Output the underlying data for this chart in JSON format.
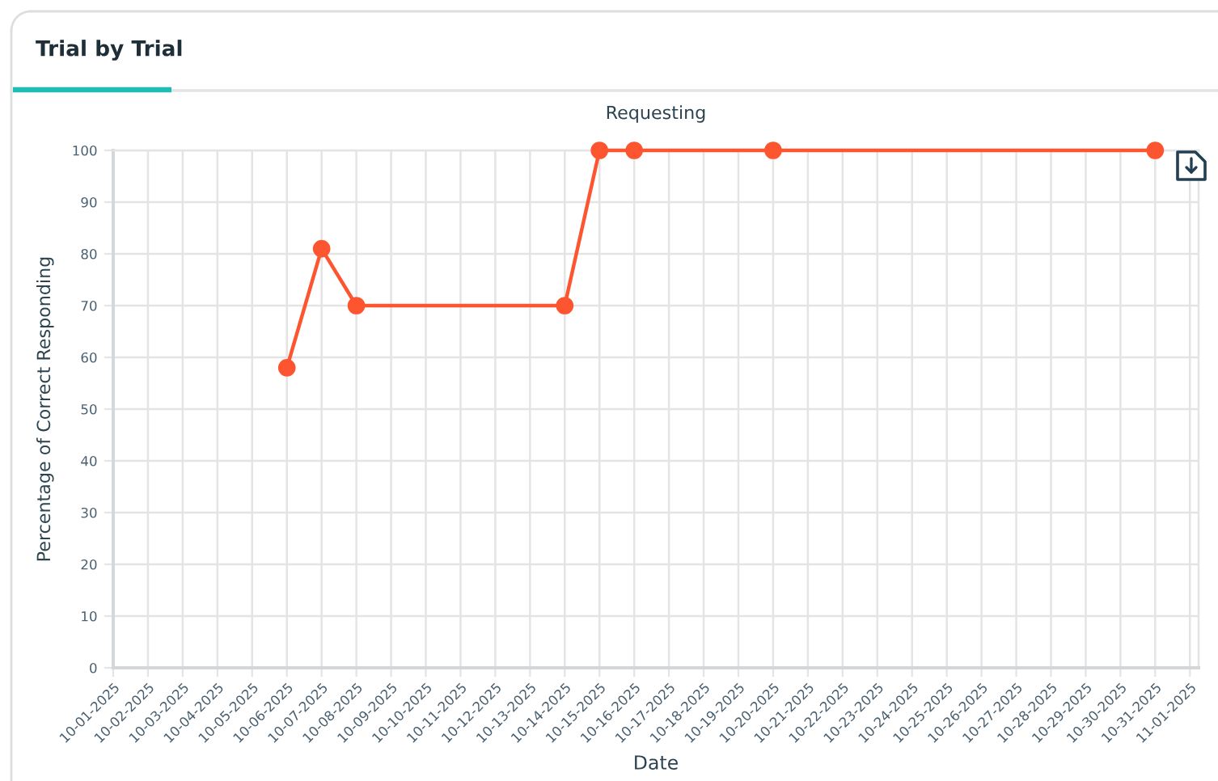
{
  "chart_data": {
    "type": "line",
    "title": "Trial by Trial",
    "subtitle": "Requesting",
    "xlabel": "Date",
    "ylabel": "Percentage of Correct Responding",
    "series": [
      {
        "color": "#fd5530",
        "x": [
          "2025-10-06",
          "2025-10-07",
          "2025-10-08",
          "2025-10-14",
          "2025-10-15",
          "2025-10-16",
          "2025-10-20",
          "2025-10-31"
        ],
        "values": [
          58,
          81,
          70,
          70,
          100,
          100,
          100,
          100
        ]
      }
    ],
    "xlim": [
      "2025-10-01",
      "2025-11-01T06:00"
    ],
    "xticks": [
      {
        "value": "2025-10-01",
        "label": "10-01-2025"
      },
      {
        "value": "2025-10-02",
        "label": "10-02-2025"
      },
      {
        "value": "2025-10-03",
        "label": "10-03-2025"
      },
      {
        "value": "2025-10-04",
        "label": "10-04-2025"
      },
      {
        "value": "2025-10-05",
        "label": "10-05-2025"
      },
      {
        "value": "2025-10-06",
        "label": "10-06-2025"
      },
      {
        "value": "2025-10-07",
        "label": "10-07-2025"
      },
      {
        "value": "2025-10-08",
        "label": "10-08-2025"
      },
      {
        "value": "2025-10-09",
        "label": "10-09-2025"
      },
      {
        "value": "2025-10-10",
        "label": "10-10-2025"
      },
      {
        "value": "2025-10-11",
        "label": "10-11-2025"
      },
      {
        "value": "2025-10-12",
        "label": "10-12-2025"
      },
      {
        "value": "2025-10-13",
        "label": "10-13-2025"
      },
      {
        "value": "2025-10-14",
        "label": "10-14-2025"
      },
      {
        "value": "2025-10-15",
        "label": "10-15-2025"
      },
      {
        "value": "2025-10-16",
        "label": "10-16-2025"
      },
      {
        "value": "2025-10-17",
        "label": "10-17-2025"
      },
      {
        "value": "2025-10-18",
        "label": "10-18-2025"
      },
      {
        "value": "2025-10-19",
        "label": "10-19-2025"
      },
      {
        "value": "2025-10-20",
        "label": "10-20-2025"
      },
      {
        "value": "2025-10-21",
        "label": "10-21-2025"
      },
      {
        "value": "2025-10-22",
        "label": "10-22-2025"
      },
      {
        "value": "2025-10-23",
        "label": "10-23-2025"
      },
      {
        "value": "2025-10-24",
        "label": "10-24-2025"
      },
      {
        "value": "2025-10-25",
        "label": "10-25-2025"
      },
      {
        "value": "2025-10-26",
        "label": "10-26-2025"
      },
      {
        "value": "2025-10-27",
        "label": "10-27-2025"
      },
      {
        "value": "2025-10-28",
        "label": "10-28-2025"
      },
      {
        "value": "2025-10-29",
        "label": "10-29-2025"
      },
      {
        "value": "2025-10-30",
        "label": "10-30-2025"
      },
      {
        "value": "2025-10-31",
        "label": "10-31-2025"
      },
      {
        "value": "2025-11-01",
        "label": "11-01-2025"
      }
    ],
    "ylim": [
      0,
      100
    ],
    "yticks": [
      0,
      10,
      20,
      30,
      40,
      50,
      60,
      70,
      80,
      90,
      100
    ],
    "grid": true,
    "marker": "circle",
    "line_style": "solid"
  }
}
